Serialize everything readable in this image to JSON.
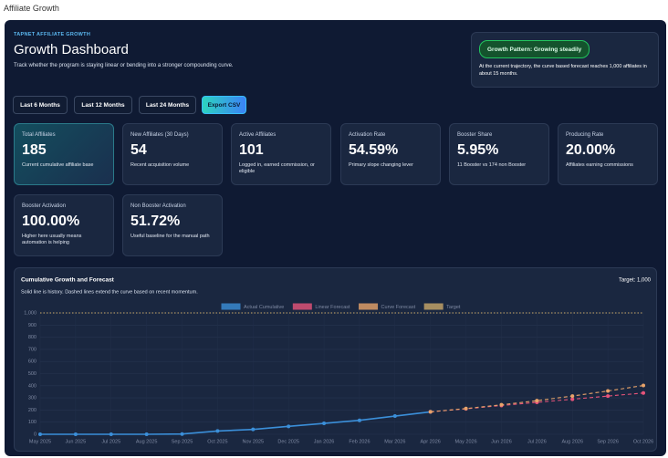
{
  "page_title": "Affiliate Growth",
  "header": {
    "eyebrow": "TAPNET AFFILIATE GROWTH",
    "title": "Growth Dashboard",
    "subtitle": "Track whether the program is staying linear or bending into a stronger compounding curve."
  },
  "pattern": {
    "badge": "Growth Pattern: Growing steadily",
    "text": "At the current trajectory, the curve based forecast reaches 1,000 affiliates in about 15 months."
  },
  "buttons": [
    "Last 6 Months",
    "Last 12 Months",
    "Last 24 Months",
    "Export CSV"
  ],
  "cards": [
    {
      "label": "Total Affiliates",
      "value": "185",
      "note": "Current cumulative affiliate base"
    },
    {
      "label": "New Affiliates (30 Days)",
      "value": "54",
      "note": "Recent acquisition volume"
    },
    {
      "label": "Active Affiliates",
      "value": "101",
      "note": "Logged in, earned commission, or eligible"
    },
    {
      "label": "Activation Rate",
      "value": "54.59%",
      "note": "Primary slope changing lever"
    },
    {
      "label": "Booster Share",
      "value": "5.95%",
      "note": "11 Booster vs 174 non Booster"
    },
    {
      "label": "Producing Rate",
      "value": "20.00%",
      "note": "Affiliates earning commissions"
    },
    {
      "label": "Booster Activation",
      "value": "100.00%",
      "note": "Higher here usually means automation is helping"
    },
    {
      "label": "Non Booster Activation",
      "value": "51.72%",
      "note": "Useful baseline for the manual path"
    }
  ],
  "chart_data": {
    "type": "line",
    "title": "Cumulative Growth and Forecast",
    "subtitle": "Solid line is history. Dashed lines extend the curve based on recent momentum.",
    "target_label": "Target: 1,000",
    "categories": [
      "May 2025",
      "Jun 2025",
      "Jul 2025",
      "Aug 2025",
      "Sep 2025",
      "Oct 2025",
      "Nov 2025",
      "Dec 2025",
      "Jan 2026",
      "Feb 2026",
      "Mar 2026",
      "Apr 2026",
      "May 2026",
      "Jun 2026",
      "Jul 2026",
      "Aug 2026",
      "Sep 2026",
      "Oct 2026"
    ],
    "series": [
      {
        "name": "Actual Cumulative",
        "color": "#3b8fd9",
        "style": "solid",
        "markers": true,
        "values": [
          0,
          0,
          0,
          0,
          2,
          27,
          40,
          65,
          90,
          115,
          150,
          185,
          null,
          null,
          null,
          null,
          null,
          null
        ]
      },
      {
        "name": "Linear Forecast",
        "color": "#e8547a",
        "style": "dashed",
        "markers": true,
        "values": [
          null,
          null,
          null,
          null,
          null,
          null,
          null,
          null,
          null,
          null,
          null,
          185,
          210,
          237,
          263,
          289,
          315,
          340
        ]
      },
      {
        "name": "Curve Forecast",
        "color": "#e8a36a",
        "style": "dashed",
        "markers": true,
        "values": [
          null,
          null,
          null,
          null,
          null,
          null,
          null,
          null,
          null,
          null,
          null,
          185,
          212,
          243,
          277,
          315,
          357,
          402
        ]
      },
      {
        "name": "Target",
        "color": "#c9a86a",
        "style": "dotted",
        "markers": false,
        "values": [
          1000,
          1000,
          1000,
          1000,
          1000,
          1000,
          1000,
          1000,
          1000,
          1000,
          1000,
          1000,
          1000,
          1000,
          1000,
          1000,
          1000,
          1000
        ]
      }
    ],
    "ylim": [
      0,
      1000
    ],
    "yticks": [
      0,
      100,
      200,
      300,
      400,
      500,
      600,
      700,
      800,
      900,
      {
        "value": 1000,
        "label": "1,000"
      }
    ],
    "grid": true
  }
}
